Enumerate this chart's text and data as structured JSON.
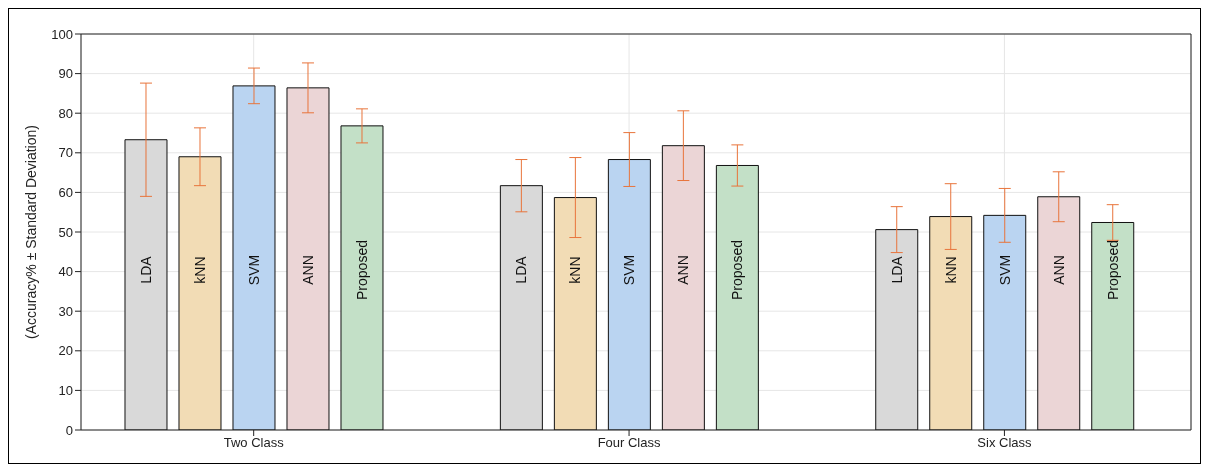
{
  "chart_data": {
    "type": "bar",
    "ylabel": "(Accuracy% ± Standard Deviation)",
    "categories": [
      "Two Class",
      "Four Class",
      "Six Class"
    ],
    "series": [
      {
        "name": "LDA",
        "color": "#d9d9d9",
        "values": [
          73.3,
          61.7,
          50.6
        ],
        "errors": [
          14.3,
          6.6,
          5.8
        ]
      },
      {
        "name": "kNN",
        "color": "#f2dcb5",
        "values": [
          69.0,
          58.7,
          53.9
        ],
        "errors": [
          7.3,
          10.1,
          8.3
        ]
      },
      {
        "name": "SVM",
        "color": "#bad4f1",
        "values": [
          86.9,
          68.3,
          54.2
        ],
        "errors": [
          4.5,
          6.8,
          6.8
        ]
      },
      {
        "name": "ANN",
        "color": "#ebd5d6",
        "values": [
          86.4,
          71.8,
          58.9
        ],
        "errors": [
          6.3,
          8.8,
          6.3
        ]
      },
      {
        "name": "Proposed",
        "color": "#c3e0c7",
        "values": [
          76.8,
          66.8,
          52.4
        ],
        "errors": [
          4.3,
          5.2,
          4.5
        ]
      }
    ],
    "ylim": [
      0,
      100
    ],
    "yticks": [
      0,
      10,
      20,
      30,
      40,
      50,
      60,
      70,
      80,
      90,
      100
    ],
    "grid": true
  }
}
